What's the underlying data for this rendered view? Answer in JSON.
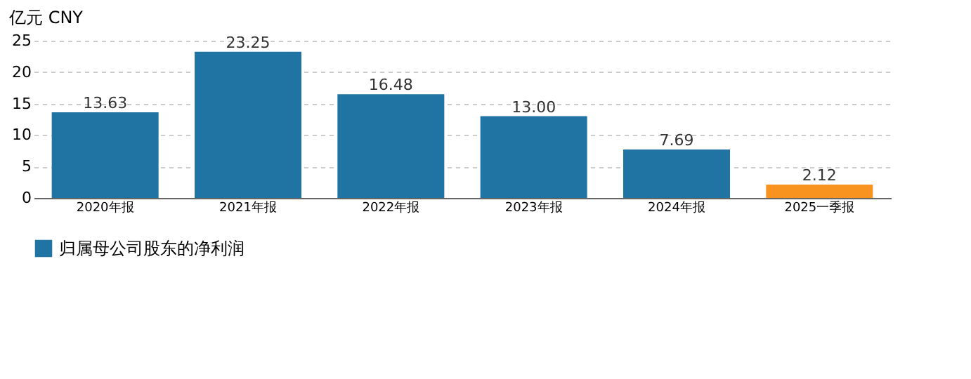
{
  "chart_data": {
    "type": "bar",
    "ylabel": "亿元  CNY",
    "categories": [
      "2020年报",
      "2021年报",
      "2022年报",
      "2023年报",
      "2024年报",
      "2025一季报"
    ],
    "series": [
      {
        "name": "归属母公司股东的净利润",
        "color": "#1f74a3",
        "values": [
          13.63,
          23.25,
          16.48,
          13.0,
          7.69,
          2.12
        ],
        "colors": [
          "#1f74a3",
          "#1f74a3",
          "#1f74a3",
          "#1f74a3",
          "#1f74a3",
          "#f7931e"
        ]
      }
    ],
    "value_labels": [
      "13.63",
      "23.25",
      "16.48",
      "13.00",
      "7.69",
      "2.12"
    ],
    "ylim": [
      0,
      25
    ],
    "yticks": [
      0,
      5,
      10,
      15,
      20,
      25
    ],
    "grid": "y",
    "legend": "bottom"
  }
}
